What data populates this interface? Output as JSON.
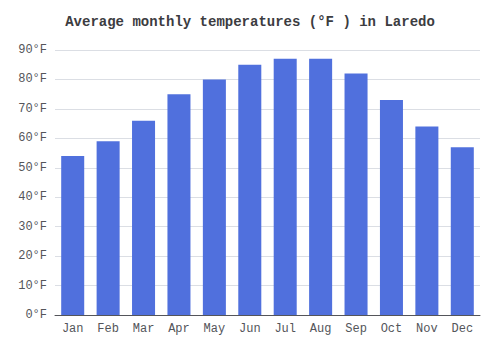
{
  "chart_data": {
    "type": "bar",
    "title": "Average monthly temperatures (°F ) in Laredo",
    "categories": [
      "Jan",
      "Feb",
      "Mar",
      "Apr",
      "May",
      "Jun",
      "Jul",
      "Aug",
      "Sep",
      "Oct",
      "Nov",
      "Dec"
    ],
    "values": [
      54,
      59,
      66,
      75,
      80,
      85,
      87,
      87,
      82,
      73,
      64,
      57
    ],
    "ylim": [
      0,
      90
    ],
    "yticks": [
      {
        "value": 0,
        "label": "0°F"
      },
      {
        "value": 10,
        "label": "10°F"
      },
      {
        "value": 20,
        "label": "20°F"
      },
      {
        "value": 30,
        "label": "30°F"
      },
      {
        "value": 40,
        "label": "40°F"
      },
      {
        "value": 50,
        "label": "50°F"
      },
      {
        "value": 60,
        "label": "60°F"
      },
      {
        "value": 70,
        "label": "70°F"
      },
      {
        "value": 80,
        "label": "80°F"
      },
      {
        "value": 90,
        "label": "90°F"
      }
    ],
    "grid": true
  }
}
